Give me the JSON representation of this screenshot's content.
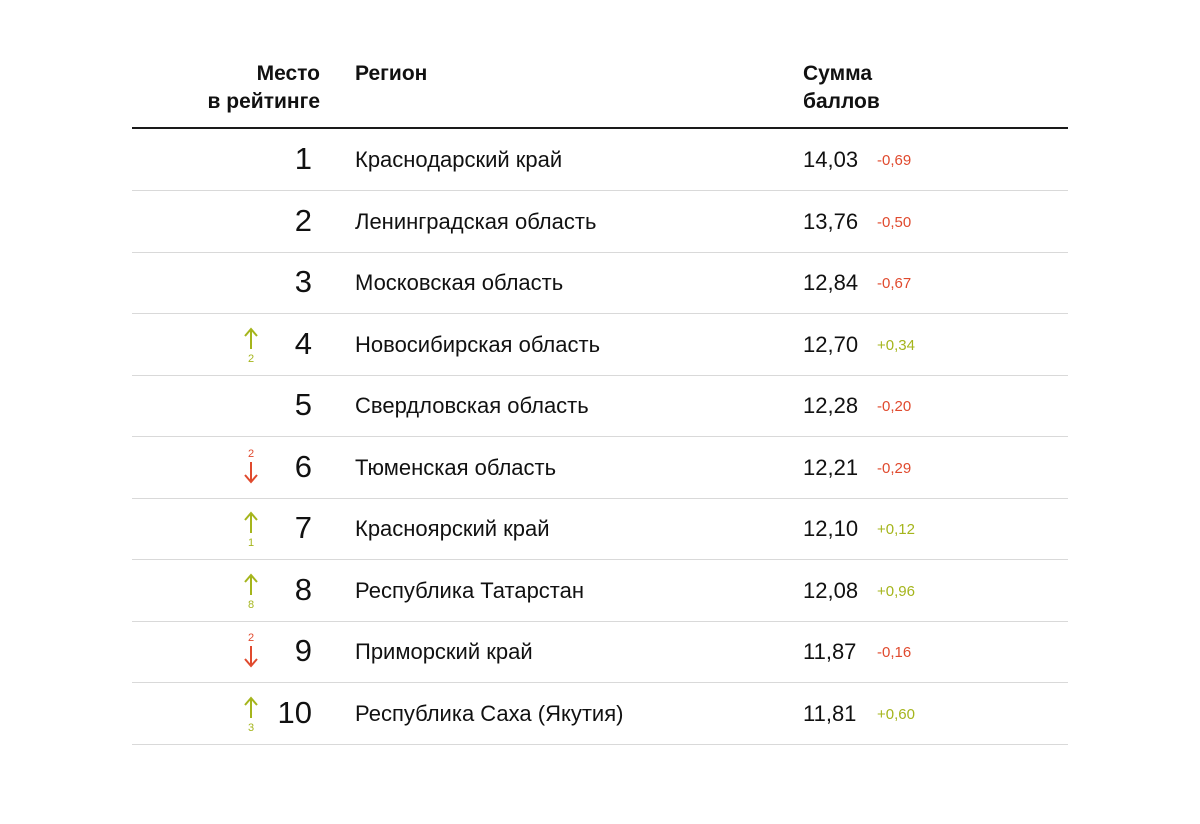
{
  "chart_data": {
    "type": "table",
    "columns": {
      "rank": [
        "Место",
        "в рейтинге"
      ],
      "region": "Регион",
      "score": [
        "Сумма",
        "баллов"
      ]
    },
    "rows": [
      {
        "rank": "1",
        "region": "Краснодарский край",
        "score": "14,03",
        "delta": "-0,69",
        "delta_sign": "neg",
        "move": null
      },
      {
        "rank": "2",
        "region": "Ленинградская область",
        "score": "13,76",
        "delta": "-0,50",
        "delta_sign": "neg",
        "move": null
      },
      {
        "rank": "3",
        "region": "Московская область",
        "score": "12,84",
        "delta": "-0,67",
        "delta_sign": "neg",
        "move": null
      },
      {
        "rank": "4",
        "region": "Новосибирская область",
        "score": "12,70",
        "delta": "+0,34",
        "delta_sign": "pos",
        "move": {
          "dir": "up",
          "value": "2"
        }
      },
      {
        "rank": "5",
        "region": "Свердловская область",
        "score": "12,28",
        "delta": "-0,20",
        "delta_sign": "neg",
        "move": null
      },
      {
        "rank": "6",
        "region": "Тюменская область",
        "score": "12,21",
        "delta": "-0,29",
        "delta_sign": "neg",
        "move": {
          "dir": "down",
          "value": "2"
        }
      },
      {
        "rank": "7",
        "region": "Красноярский край",
        "score": "12,10",
        "delta": "+0,12",
        "delta_sign": "pos",
        "move": {
          "dir": "up",
          "value": "1"
        }
      },
      {
        "rank": "8",
        "region": "Республика Татарстан",
        "score": "12,08",
        "delta": "+0,96",
        "delta_sign": "pos",
        "move": {
          "dir": "up",
          "value": "8"
        }
      },
      {
        "rank": "9",
        "region": "Приморский край",
        "score": "11,87",
        "delta": "-0,16",
        "delta_sign": "neg",
        "move": {
          "dir": "down",
          "value": "2"
        }
      },
      {
        "rank": "10",
        "region": "Республика Саха (Якутия)",
        "score": "11,81",
        "delta": "+0,60",
        "delta_sign": "pos",
        "move": {
          "dir": "up",
          "value": "3"
        }
      }
    ],
    "colors": {
      "negative": "#e04a2e",
      "positive": "#a5b51c",
      "rule": "#1a1a1a",
      "row_divider": "#d9d9d9"
    }
  }
}
